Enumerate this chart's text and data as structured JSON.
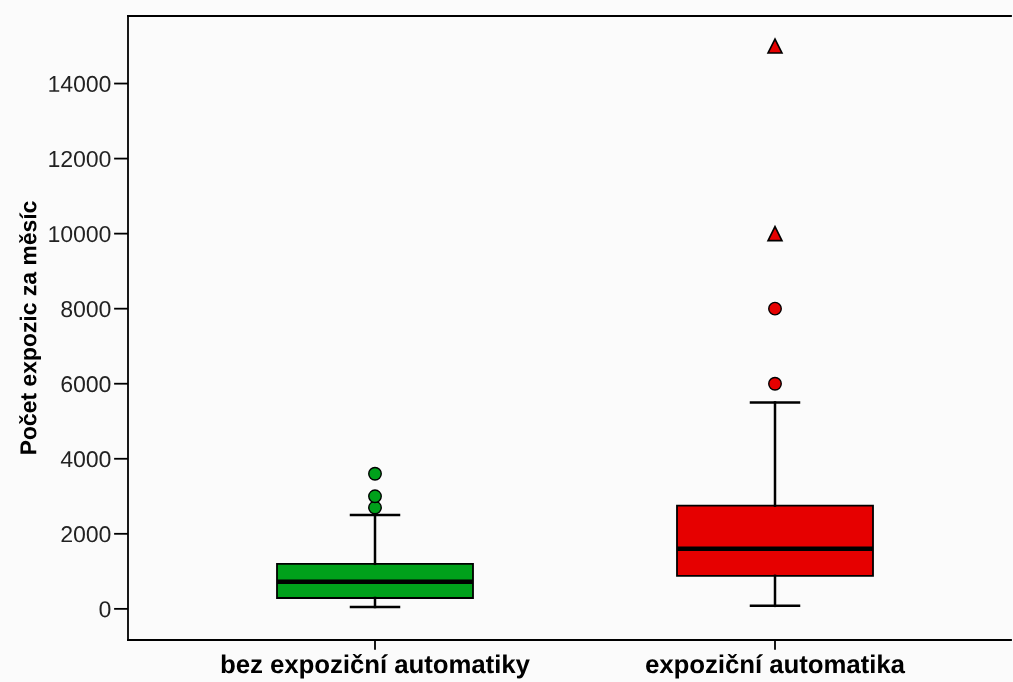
{
  "chart_data": {
    "type": "box",
    "ylabel": "Počet expozic za měsíc",
    "categories": [
      "bez expoziční automatiky",
      "expoziční automatika"
    ],
    "colors": [
      "#00a11b",
      "#e60000"
    ],
    "marker": "circle",
    "boxes": [
      {
        "low": 50,
        "q1": 290,
        "median": 720,
        "q3": 1200,
        "high": 2500,
        "outliers": [
          2700,
          3000,
          3600
        ]
      },
      {
        "low": 80,
        "q1": 880,
        "median": 1600,
        "q3": 2750,
        "high": 5500,
        "outliers": [
          6000,
          8000
        ]
      }
    ],
    "series": [
      {
        "type": "scatter",
        "x": [
          "expoziční automatika",
          "expoziční automatika"
        ],
        "values": [
          10000,
          15000
        ],
        "color": "#e60000",
        "marker": "triangle"
      }
    ],
    "ylim": [
      -830,
      15800
    ],
    "yticks": [
      0,
      2000,
      4000,
      6000,
      8000,
      10000,
      12000,
      14000
    ]
  }
}
